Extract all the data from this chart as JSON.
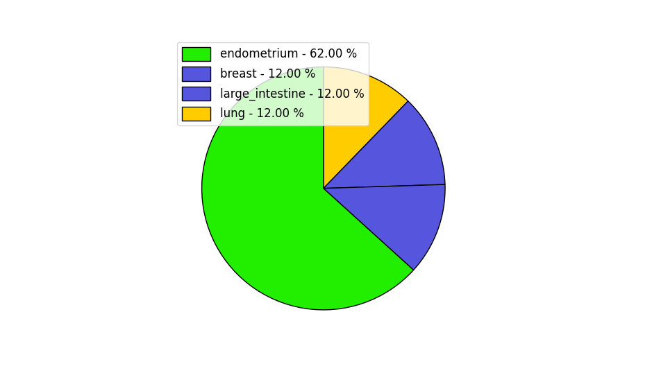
{
  "labels": [
    "endometrium",
    "breast",
    "large_intestine",
    "lung"
  ],
  "values": [
    62.0,
    12.0,
    12.0,
    12.0
  ],
  "colors": [
    "#00dd00",
    "#4444ff",
    "#6666ff",
    "#ffcc00"
  ],
  "legend_labels": [
    "endometrium - 62.00 %",
    "breast - 12.00 %",
    "large_intestine - 12.00 %",
    "lung - 12.00 %"
  ],
  "legend_colors": [
    "#00dd00",
    "#5555ee",
    "#5555ee",
    "#ffcc00"
  ],
  "startangle": 90,
  "figsize": [
    9.39,
    5.38
  ],
  "dpi": 100,
  "background_color": "#ffffff"
}
